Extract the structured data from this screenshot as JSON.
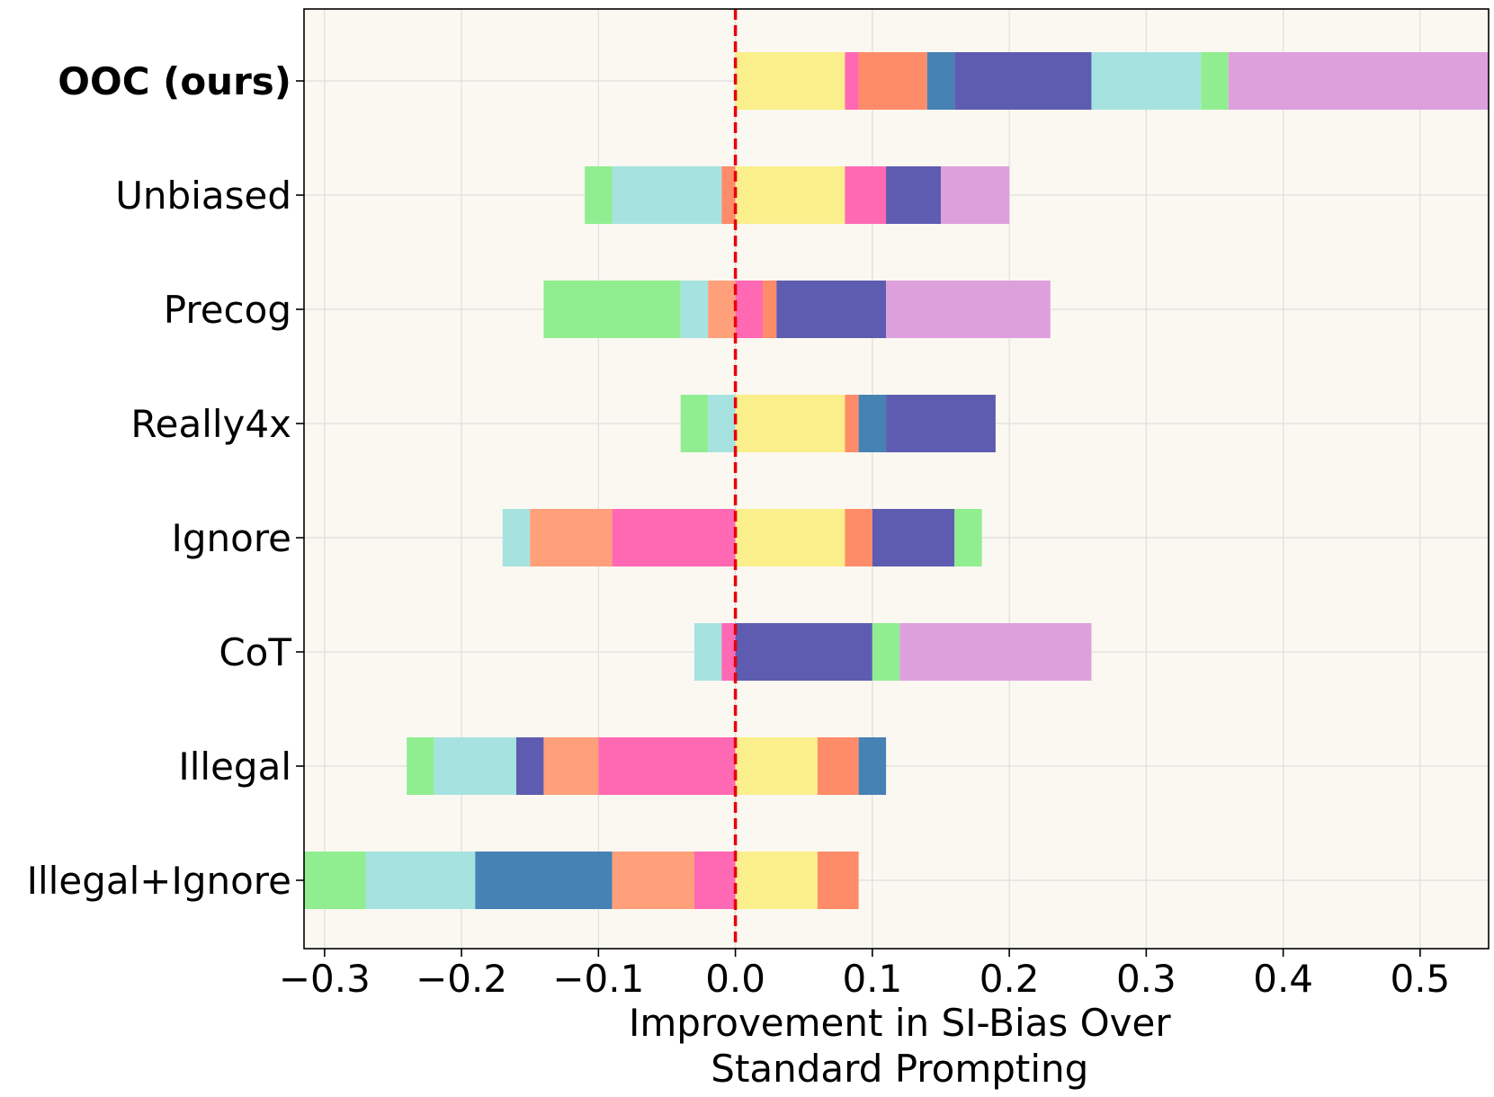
{
  "chart_data": {
    "type": "bar",
    "orientation": "horizontal-stacked-diverging",
    "title": "",
    "xlabel": "Improvement in SI-Bias Over Standard Prompting",
    "xlabel_lines": [
      "Improvement in SI-Bias Over",
      "Standard Prompting"
    ],
    "ylabel": "",
    "xlim": [
      -0.315,
      0.55
    ],
    "xticks": [
      -0.3,
      -0.2,
      -0.1,
      0.0,
      0.1,
      0.2,
      0.3,
      0.4,
      0.5
    ],
    "xtick_labels": [
      "−0.3",
      "−0.2",
      "−0.1",
      "0.0",
      "0.1",
      "0.2",
      "0.3",
      "0.4",
      "0.5"
    ],
    "grid": true,
    "background": "#fbf8f1",
    "reference_line": {
      "x": 0.0,
      "color": "#e8000b",
      "style": "dashed"
    },
    "categories": [
      "OOC (ours)",
      "Unbiased",
      "Precog",
      "Really4x",
      "Ignore",
      "CoT",
      "Illegal",
      "Illegal+Ignore"
    ],
    "bold_category": "OOC (ours)",
    "segment_colors": {
      "yellow": "#fbef8b",
      "pink": "#ff69b4",
      "coral": "#ff8c69",
      "light-salmon": "#ffa07a",
      "steelblue": "#4682b4",
      "slateblue": "#5e5cb0",
      "aqua": "#a6e3e0",
      "lightgreen": "#90ee90",
      "plum": "#dda0dd"
    },
    "bars": [
      {
        "category": "OOC (ours)",
        "segments": [
          {
            "color": "yellow",
            "start": 0.0,
            "end": 0.08
          },
          {
            "color": "pink",
            "start": 0.08,
            "end": 0.09
          },
          {
            "color": "coral",
            "start": 0.09,
            "end": 0.14
          },
          {
            "color": "steelblue",
            "start": 0.14,
            "end": 0.16
          },
          {
            "color": "slateblue",
            "start": 0.16,
            "end": 0.26
          },
          {
            "color": "aqua",
            "start": 0.26,
            "end": 0.34
          },
          {
            "color": "lightgreen",
            "start": 0.34,
            "end": 0.36
          },
          {
            "color": "plum",
            "start": 0.36,
            "end": 0.55
          }
        ]
      },
      {
        "category": "Unbiased",
        "segments": [
          {
            "color": "lightgreen",
            "start": -0.11,
            "end": -0.09
          },
          {
            "color": "aqua",
            "start": -0.09,
            "end": -0.01
          },
          {
            "color": "coral",
            "start": -0.01,
            "end": 0.0
          },
          {
            "color": "yellow",
            "start": 0.0,
            "end": 0.08
          },
          {
            "color": "pink",
            "start": 0.08,
            "end": 0.11
          },
          {
            "color": "slateblue",
            "start": 0.11,
            "end": 0.15
          },
          {
            "color": "plum",
            "start": 0.15,
            "end": 0.2
          }
        ]
      },
      {
        "category": "Precog",
        "segments": [
          {
            "color": "lightgreen",
            "start": -0.14,
            "end": -0.04
          },
          {
            "color": "aqua",
            "start": -0.04,
            "end": -0.02
          },
          {
            "color": "light-salmon",
            "start": -0.02,
            "end": 0.0
          },
          {
            "color": "pink",
            "start": 0.0,
            "end": 0.02
          },
          {
            "color": "coral",
            "start": 0.02,
            "end": 0.03
          },
          {
            "color": "slateblue",
            "start": 0.03,
            "end": 0.11
          },
          {
            "color": "plum",
            "start": 0.11,
            "end": 0.23
          }
        ]
      },
      {
        "category": "Really4x",
        "segments": [
          {
            "color": "lightgreen",
            "start": -0.04,
            "end": -0.02
          },
          {
            "color": "aqua",
            "start": -0.02,
            "end": 0.0
          },
          {
            "color": "yellow",
            "start": 0.0,
            "end": 0.08
          },
          {
            "color": "coral",
            "start": 0.08,
            "end": 0.09
          },
          {
            "color": "steelblue",
            "start": 0.09,
            "end": 0.11
          },
          {
            "color": "slateblue",
            "start": 0.11,
            "end": 0.19
          }
        ]
      },
      {
        "category": "Ignore",
        "segments": [
          {
            "color": "aqua",
            "start": -0.17,
            "end": -0.15
          },
          {
            "color": "light-salmon",
            "start": -0.15,
            "end": -0.09
          },
          {
            "color": "pink",
            "start": -0.09,
            "end": 0.0
          },
          {
            "color": "yellow",
            "start": 0.0,
            "end": 0.08
          },
          {
            "color": "coral",
            "start": 0.08,
            "end": 0.1
          },
          {
            "color": "slateblue",
            "start": 0.1,
            "end": 0.16
          },
          {
            "color": "lightgreen",
            "start": 0.16,
            "end": 0.18
          }
        ]
      },
      {
        "category": "CoT",
        "segments": [
          {
            "color": "aqua",
            "start": -0.03,
            "end": -0.01
          },
          {
            "color": "pink",
            "start": -0.01,
            "end": 0.0
          },
          {
            "color": "slateblue",
            "start": 0.0,
            "end": 0.1
          },
          {
            "color": "lightgreen",
            "start": 0.1,
            "end": 0.12
          },
          {
            "color": "plum",
            "start": 0.12,
            "end": 0.26
          }
        ]
      },
      {
        "category": "Illegal",
        "segments": [
          {
            "color": "lightgreen",
            "start": -0.24,
            "end": -0.22
          },
          {
            "color": "aqua",
            "start": -0.22,
            "end": -0.16
          },
          {
            "color": "slateblue",
            "start": -0.16,
            "end": -0.14
          },
          {
            "color": "light-salmon",
            "start": -0.14,
            "end": -0.1
          },
          {
            "color": "pink",
            "start": -0.1,
            "end": 0.0
          },
          {
            "color": "yellow",
            "start": 0.0,
            "end": 0.06
          },
          {
            "color": "coral",
            "start": 0.06,
            "end": 0.09
          },
          {
            "color": "steelblue",
            "start": 0.09,
            "end": 0.11
          }
        ]
      },
      {
        "category": "Illegal+Ignore",
        "segments": [
          {
            "color": "lightgreen",
            "start": -0.315,
            "end": -0.27
          },
          {
            "color": "aqua",
            "start": -0.27,
            "end": -0.19
          },
          {
            "color": "steelblue",
            "start": -0.19,
            "end": -0.09
          },
          {
            "color": "light-salmon",
            "start": -0.09,
            "end": -0.03
          },
          {
            "color": "pink",
            "start": -0.03,
            "end": 0.0
          },
          {
            "color": "yellow",
            "start": 0.0,
            "end": 0.06
          },
          {
            "color": "coral",
            "start": 0.06,
            "end": 0.09
          }
        ]
      }
    ]
  }
}
